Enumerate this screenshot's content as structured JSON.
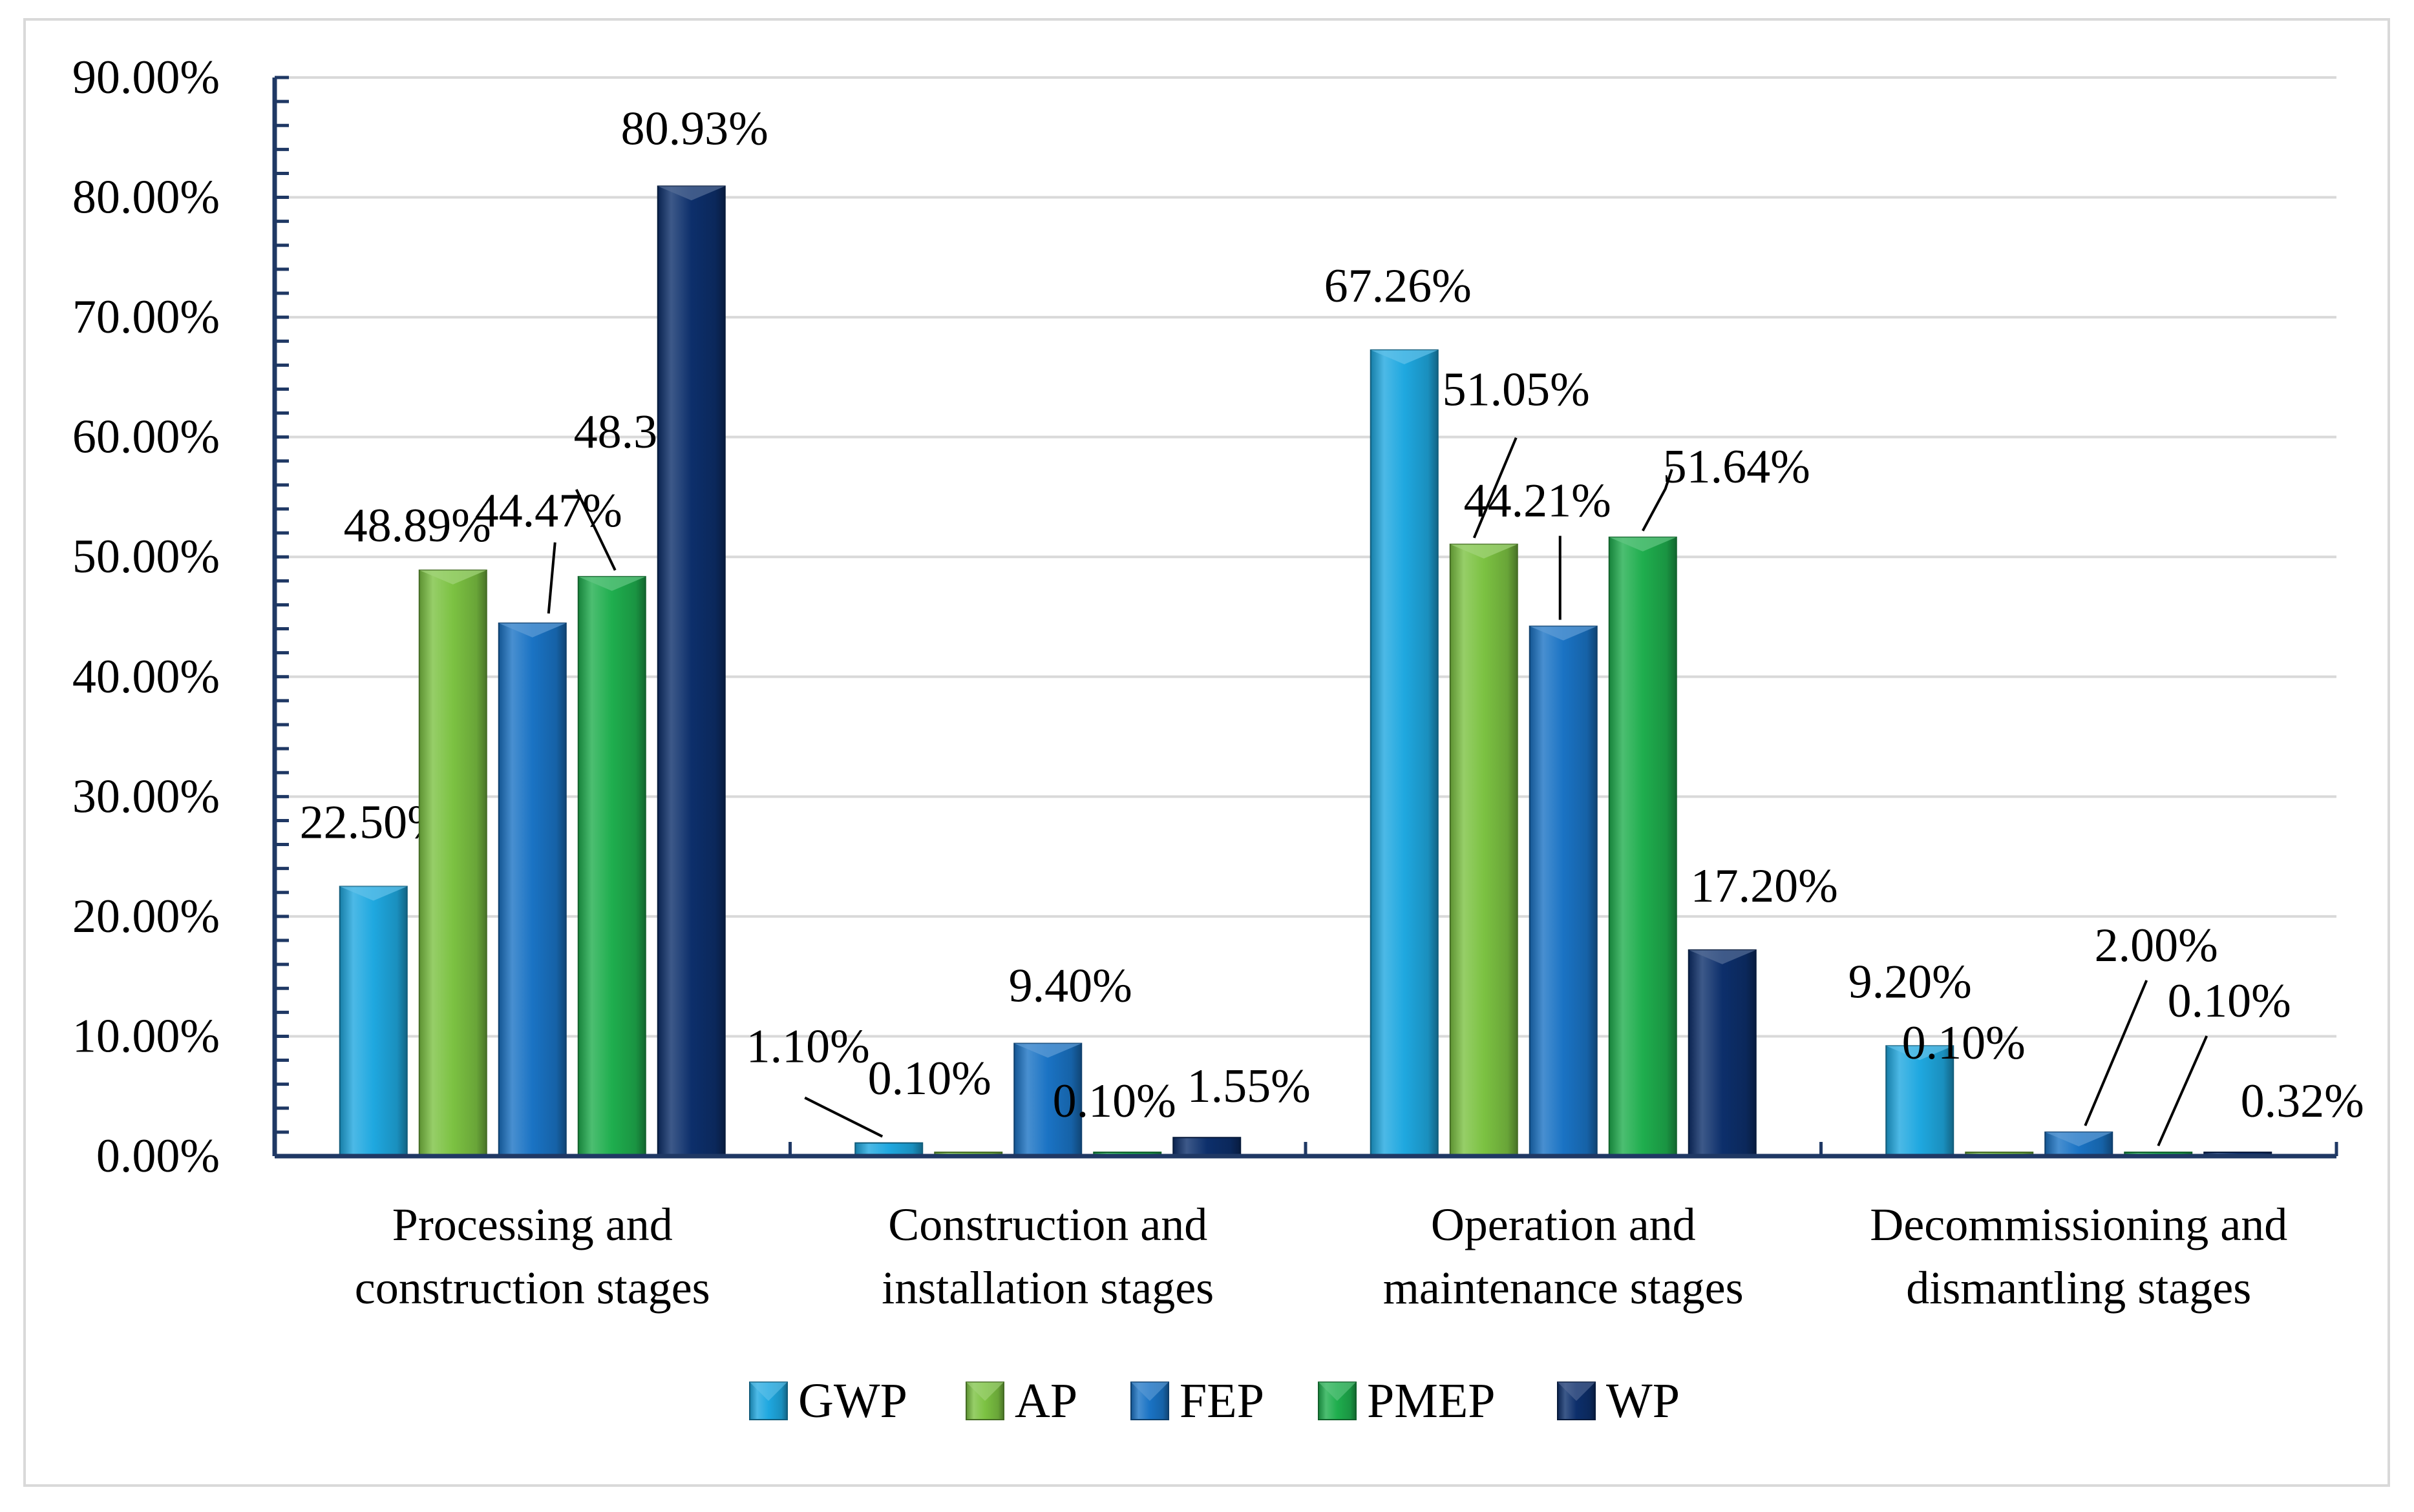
{
  "chart_data": {
    "type": "bar",
    "categories": [
      [
        "Processing and",
        "construction stages"
      ],
      [
        "Construction and",
        "installation stages"
      ],
      [
        "Operation and",
        "maintenance stages"
      ],
      [
        "Decommissioning and",
        "dismantling stages"
      ]
    ],
    "series": [
      {
        "name": "GWP",
        "color": "#1fa8e0",
        "values": [
          22.5,
          1.1,
          67.26,
          9.2
        ],
        "labels": [
          "22.50%",
          "1.10%",
          "67.26%",
          "9.20%"
        ]
      },
      {
        "name": "AP",
        "color": "#7cc242",
        "values": [
          48.89,
          0.1,
          51.05,
          0.1
        ],
        "labels": [
          "48.89%",
          "0.10%",
          "51.05%",
          "0.10%"
        ]
      },
      {
        "name": "FEP",
        "color": "#1a73c4",
        "values": [
          44.47,
          9.4,
          44.21,
          2.0
        ],
        "labels": [
          "44.47%",
          "9.40%",
          "44.21%",
          "2.00%"
        ]
      },
      {
        "name": "PMEP",
        "color": "#1fae4e",
        "values": [
          48.35,
          0.1,
          51.64,
          0.1
        ],
        "labels": [
          "48.35%",
          "0.10%",
          "51.64%",
          "0.10%"
        ]
      },
      {
        "name": "WP",
        "color": "#0d2f6b",
        "values": [
          80.93,
          1.55,
          17.2,
          0.32
        ],
        "labels": [
          "80.93%",
          "1.55%",
          "17.20%",
          "0.32%"
        ]
      }
    ],
    "yticks": [
      "0.00%",
      "10.00%",
      "20.00%",
      "30.00%",
      "40.00%",
      "50.00%",
      "60.00%",
      "70.00%",
      "80.00%",
      "90.00%"
    ],
    "ylim": [
      0,
      90
    ],
    "grid": true,
    "legend_position": "bottom"
  }
}
